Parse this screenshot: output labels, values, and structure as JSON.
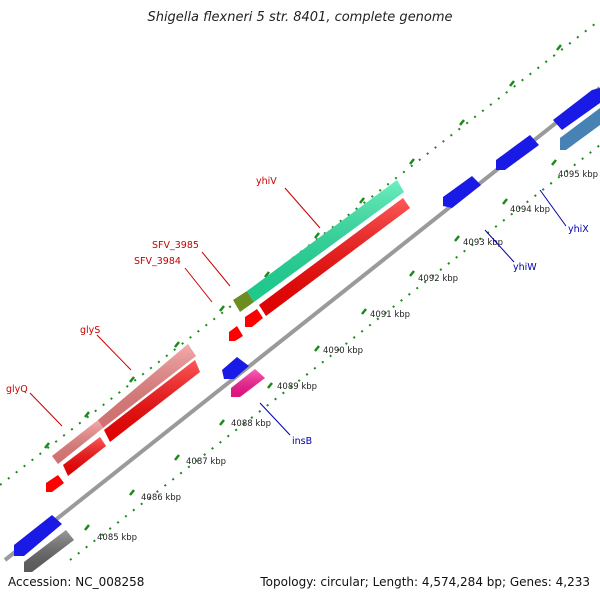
{
  "title": "Shigella flexneri 5 str. 8401, complete genome",
  "footer": {
    "accession": "Accession: NC_008258",
    "topology": "Topology: circular; Length: 4,574,284 bp; Genes: 4,233"
  },
  "colors": {
    "axis": "#9a9a9a",
    "tick_dash": "#1a8a1a",
    "tick_label": "#222222",
    "label_red": "#cc0000",
    "label_blue": "#0000aa",
    "gene_blue": "#1a1ae6",
    "gene_red": "#ff0000",
    "gene_pink": "#f08080",
    "gene_mint": "#20e6a0",
    "gene_olive": "#6b8e23",
    "gene_magenta": "#ff1493",
    "gene_steelblue": "#4682b4",
    "gene_gray": "#666666"
  },
  "scale_ticks": [
    {
      "label": "4085 kbp"
    },
    {
      "label": "4086 kbp"
    },
    {
      "label": "4087 kbp"
    },
    {
      "label": "4088 kbp"
    },
    {
      "label": "4089 kbp"
    },
    {
      "label": "4090 kbp"
    },
    {
      "label": "4091 kbp"
    },
    {
      "label": "4092 kbp"
    },
    {
      "label": "4093 kbp"
    },
    {
      "label": "4094 kbp"
    },
    {
      "label": "4095 kbp"
    }
  ],
  "gene_labels": [
    {
      "name": "yhiV",
      "color": "red"
    },
    {
      "name": "SFV_3985",
      "color": "red"
    },
    {
      "name": "SFV_3984",
      "color": "red"
    },
    {
      "name": "glyS",
      "color": "red"
    },
    {
      "name": "glyQ",
      "color": "red"
    },
    {
      "name": "insB",
      "color": "blue"
    },
    {
      "name": "yhiW",
      "color": "blue"
    },
    {
      "name": "yhiX",
      "color": "blue"
    }
  ]
}
